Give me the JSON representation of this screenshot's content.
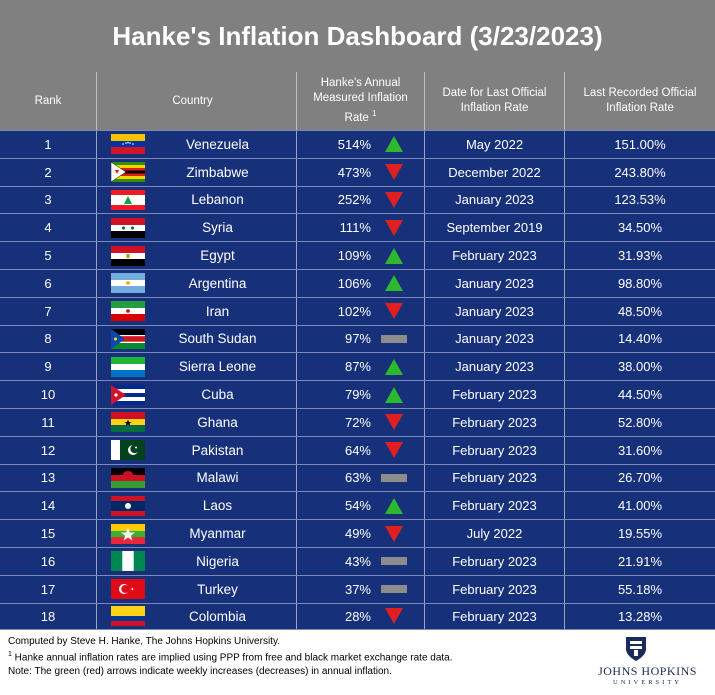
{
  "title": "Hanke's Inflation Dashboard (3/23/2023)",
  "colors": {
    "header_bg": "#808080",
    "row_bg": "#17307a",
    "up_arrow": "#2db82d",
    "down_arrow": "#e02020",
    "flat_bar": "#8c8c8c"
  },
  "chart_data": {
    "type": "table",
    "columns": {
      "rank": "Rank",
      "country": "Country",
      "hanke_rate": "Hanke's Annual Measured Inflation Rate",
      "hanke_rate_sup": "1",
      "date": "Date for Last Official Inflation Rate",
      "last_rate": "Last Recorded Official Inflation Rate"
    },
    "rows": [
      {
        "rank": "1",
        "country": "Venezuela",
        "flag": "venezuela",
        "rate": "514%",
        "trend": "up",
        "date": "May 2022",
        "official": "151.00%"
      },
      {
        "rank": "2",
        "country": "Zimbabwe",
        "flag": "zimbabwe",
        "rate": "473%",
        "trend": "down",
        "date": "December 2022",
        "official": "243.80%"
      },
      {
        "rank": "3",
        "country": "Lebanon",
        "flag": "lebanon",
        "rate": "252%",
        "trend": "down",
        "date": "January 2023",
        "official": "123.53%"
      },
      {
        "rank": "4",
        "country": "Syria",
        "flag": "syria",
        "rate": "111%",
        "trend": "down",
        "date": "September 2019",
        "official": "34.50%"
      },
      {
        "rank": "5",
        "country": "Egypt",
        "flag": "egypt",
        "rate": "109%",
        "trend": "up",
        "date": "February 2023",
        "official": "31.93%"
      },
      {
        "rank": "6",
        "country": "Argentina",
        "flag": "argentina",
        "rate": "106%",
        "trend": "up",
        "date": "January 2023",
        "official": "98.80%"
      },
      {
        "rank": "7",
        "country": "Iran",
        "flag": "iran",
        "rate": "102%",
        "trend": "down",
        "date": "January 2023",
        "official": "48.50%"
      },
      {
        "rank": "8",
        "country": "South Sudan",
        "flag": "south-sudan",
        "rate": "97%",
        "trend": "flat",
        "date": "January 2023",
        "official": "14.40%"
      },
      {
        "rank": "9",
        "country": "Sierra Leone",
        "flag": "sierra-leone",
        "rate": "87%",
        "trend": "up",
        "date": "January 2023",
        "official": "38.00%"
      },
      {
        "rank": "10",
        "country": "Cuba",
        "flag": "cuba",
        "rate": "79%",
        "trend": "up",
        "date": "February 2023",
        "official": "44.50%"
      },
      {
        "rank": "11",
        "country": "Ghana",
        "flag": "ghana",
        "rate": "72%",
        "trend": "down",
        "date": "February 2023",
        "official": "52.80%"
      },
      {
        "rank": "12",
        "country": "Pakistan",
        "flag": "pakistan",
        "rate": "64%",
        "trend": "down",
        "date": "February 2023",
        "official": "31.60%"
      },
      {
        "rank": "13",
        "country": "Malawi",
        "flag": "malawi",
        "rate": "63%",
        "trend": "flat",
        "date": "February 2023",
        "official": "26.70%"
      },
      {
        "rank": "14",
        "country": "Laos",
        "flag": "laos",
        "rate": "54%",
        "trend": "up",
        "date": "February 2023",
        "official": "41.00%"
      },
      {
        "rank": "15",
        "country": "Myanmar",
        "flag": "myanmar",
        "rate": "49%",
        "trend": "down",
        "date": "July 2022",
        "official": "19.55%"
      },
      {
        "rank": "16",
        "country": "Nigeria",
        "flag": "nigeria",
        "rate": "43%",
        "trend": "flat",
        "date": "February 2023",
        "official": "21.91%"
      },
      {
        "rank": "17",
        "country": "Turkey",
        "flag": "turkey",
        "rate": "37%",
        "trend": "flat",
        "date": "February 2023",
        "official": "55.18%"
      },
      {
        "rank": "18",
        "country": "Colombia",
        "flag": "colombia",
        "rate": "28%",
        "trend": "down",
        "date": "February 2023",
        "official": "13.28%"
      }
    ]
  },
  "footer": {
    "line1": "Computed by Steve H. Hanke, The Johns Hopkins University.",
    "line2_sup": "1",
    "line2": " Hanke annual inflation rates are implied using PPP from free and black market exchange rate data.",
    "line3": "Note: The green (red) arrows indicate weekly increases (decreases) in annual inflation.",
    "logo_main": "JOHNS HOPKINS",
    "logo_sub": "UNIVERSITY",
    "logo_icon": "university-shield-icon"
  }
}
